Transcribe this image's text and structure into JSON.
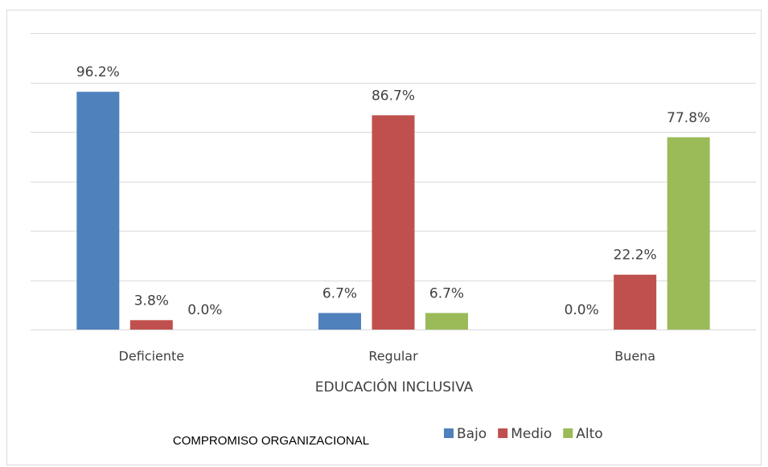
{
  "chart_data": {
    "type": "bar",
    "categories": [
      "Deficiente",
      "Regular",
      "Buena"
    ],
    "series": [
      {
        "name": "Bajo",
        "color": "#4f81bd",
        "values": [
          96.2,
          6.7,
          0.0
        ],
        "value_labels": [
          "96.2%",
          "6.7%",
          "0.0%"
        ]
      },
      {
        "name": "Medio",
        "color": "#c0504d",
        "values": [
          3.8,
          86.7,
          22.2
        ],
        "value_labels": [
          "3.8%",
          "86.7%",
          "22.2%"
        ]
      },
      {
        "name": "Alto",
        "color": "#9bbb59",
        "values": [
          0.0,
          6.7,
          77.8
        ],
        "value_labels": [
          "0.0%",
          "6.7%",
          "77.8%"
        ]
      }
    ],
    "xlabel": "EDUCACIÓN INCLUSIVA",
    "legend_title": "COMPROMISO ORGANIZACIONAL",
    "ylim": [
      0,
      120
    ],
    "yticks": [
      0,
      20,
      40,
      60,
      80,
      100,
      120
    ],
    "grid": true,
    "legend": "bottom"
  }
}
